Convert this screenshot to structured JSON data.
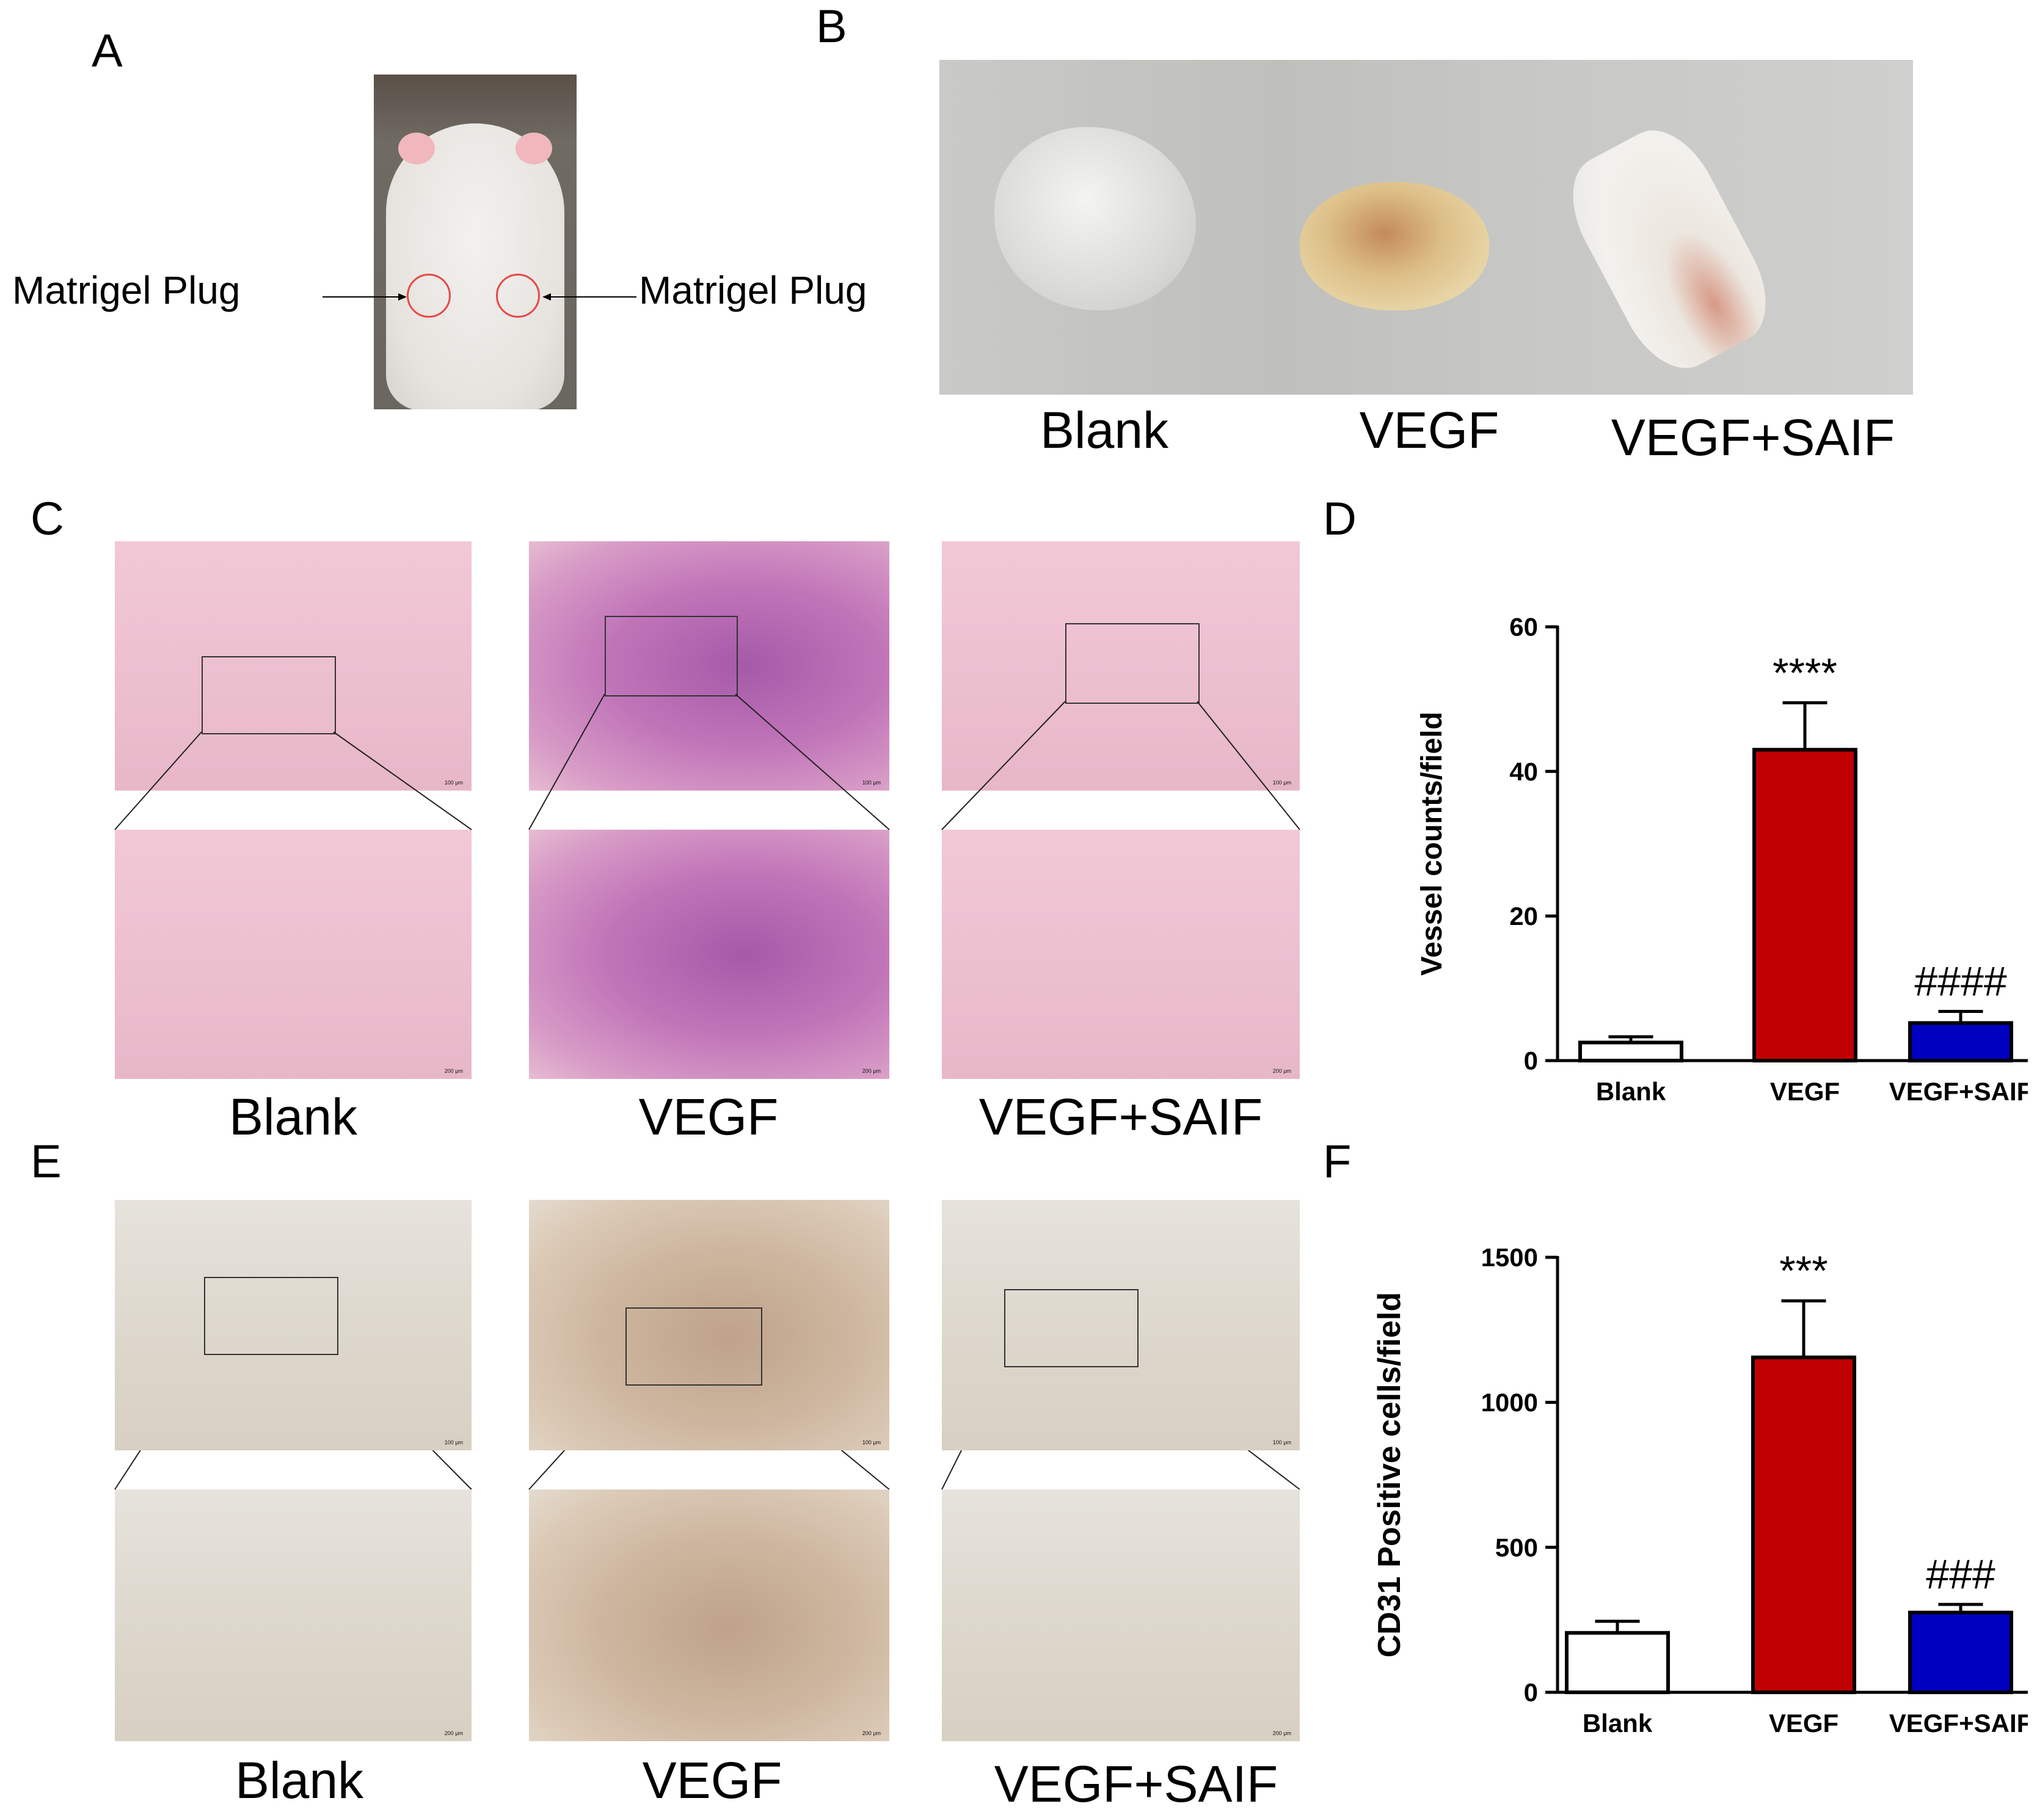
{
  "panels": {
    "A": {
      "letter": "A",
      "label_left": "Matrigel Plug",
      "label_right": "Matrigel Plug"
    },
    "B": {
      "letter": "B",
      "captions": [
        "Blank",
        "VEGF",
        "VEGF+SAIF"
      ]
    },
    "C": {
      "letter": "C",
      "captions": [
        "Blank",
        "VEGF",
        "VEGF+SAIF"
      ],
      "scale_top": "100 μm",
      "scale_bottom": "200 μm"
    },
    "E": {
      "letter": "E",
      "captions": [
        "Blank",
        "VEGF",
        "VEGF+SAIF"
      ],
      "scale_top": "100 μm",
      "scale_bottom": "200 μm"
    },
    "D": {
      "letter": "D"
    },
    "F": {
      "letter": "F"
    }
  },
  "colors": {
    "blank": "#ffffff",
    "vegf": "#c00000",
    "vegf_saif": "#0000c0"
  },
  "chart_data": [
    {
      "id": "D",
      "type": "bar",
      "categories": [
        "Blank",
        "VEGF",
        "VEGF+SAIF"
      ],
      "values": [
        2.5,
        43,
        5.2
      ],
      "errors": [
        0.8,
        6.5,
        1.6
      ],
      "annotations": [
        "",
        "****",
        "####"
      ],
      "ylabel": "Vessel counts/field",
      "ylim": [
        0,
        60
      ],
      "yticks": [
        0,
        20,
        40,
        60
      ],
      "ytick_labels": [
        "0",
        "20",
        "40",
        "60"
      ]
    },
    {
      "id": "F",
      "type": "bar",
      "categories": [
        "Blank",
        "VEGF",
        "VEGF+SAIF"
      ],
      "values": [
        205,
        1155,
        275
      ],
      "errors": [
        40,
        195,
        28
      ],
      "annotations": [
        "",
        "***",
        "###"
      ],
      "ylabel": "CD31 Positive cells/field",
      "ylim": [
        0,
        1500
      ],
      "yticks": [
        0,
        500,
        1000,
        1500
      ],
      "ytick_labels": [
        "0",
        "500",
        "1000",
        "1500"
      ]
    }
  ]
}
